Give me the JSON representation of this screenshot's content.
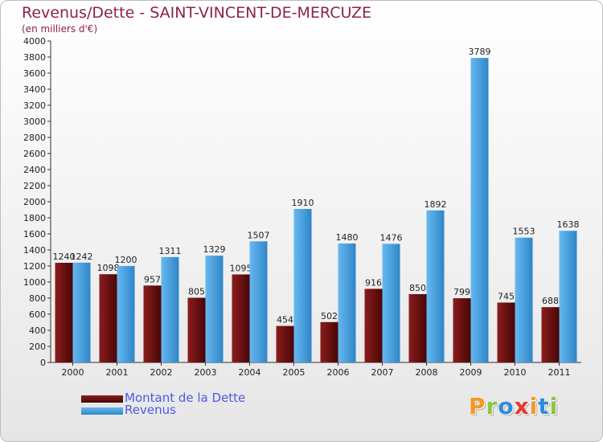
{
  "chart_data": {
    "type": "bar",
    "title": "Revenus/Dette - SAINT-VINCENT-DE-MERCUZE",
    "subtitle": "(en milliers d'€)",
    "categories": [
      "2000",
      "2001",
      "2002",
      "2003",
      "2004",
      "2005",
      "2006",
      "2007",
      "2008",
      "2009",
      "2010",
      "2011"
    ],
    "series": [
      {
        "name": "Montant de la Dette",
        "color": "#6b0f0f",
        "values": [
          1240,
          1098,
          957,
          805,
          1095,
          454,
          502,
          916,
          850,
          799,
          745,
          688
        ]
      },
      {
        "name": "Revenus",
        "color": "#4fa8e6",
        "values": [
          1242,
          1200,
          1311,
          1329,
          1507,
          1910,
          1480,
          1476,
          1892,
          3789,
          1553,
          1638
        ]
      }
    ],
    "y_ticks": [
      "0",
      "200",
      "400",
      "600",
      "800",
      "1000",
      "1200",
      "1400",
      "1600",
      "1800",
      "2000",
      "2200",
      "2400",
      "2600",
      "2800",
      "3000",
      "3200",
      "3400",
      "3600",
      "3800",
      "4000"
    ],
    "ylim": [
      0,
      4000
    ],
    "grid": false,
    "data_labels": true,
    "legend_position": "bottom-left"
  },
  "logo": {
    "text": "Proxiti",
    "colors": [
      "#f39a1e",
      "#8cc63f",
      "#2f8ddb",
      "#e43b2e",
      "#f39a1e",
      "#2f8ddb",
      "#8cc63f"
    ]
  }
}
